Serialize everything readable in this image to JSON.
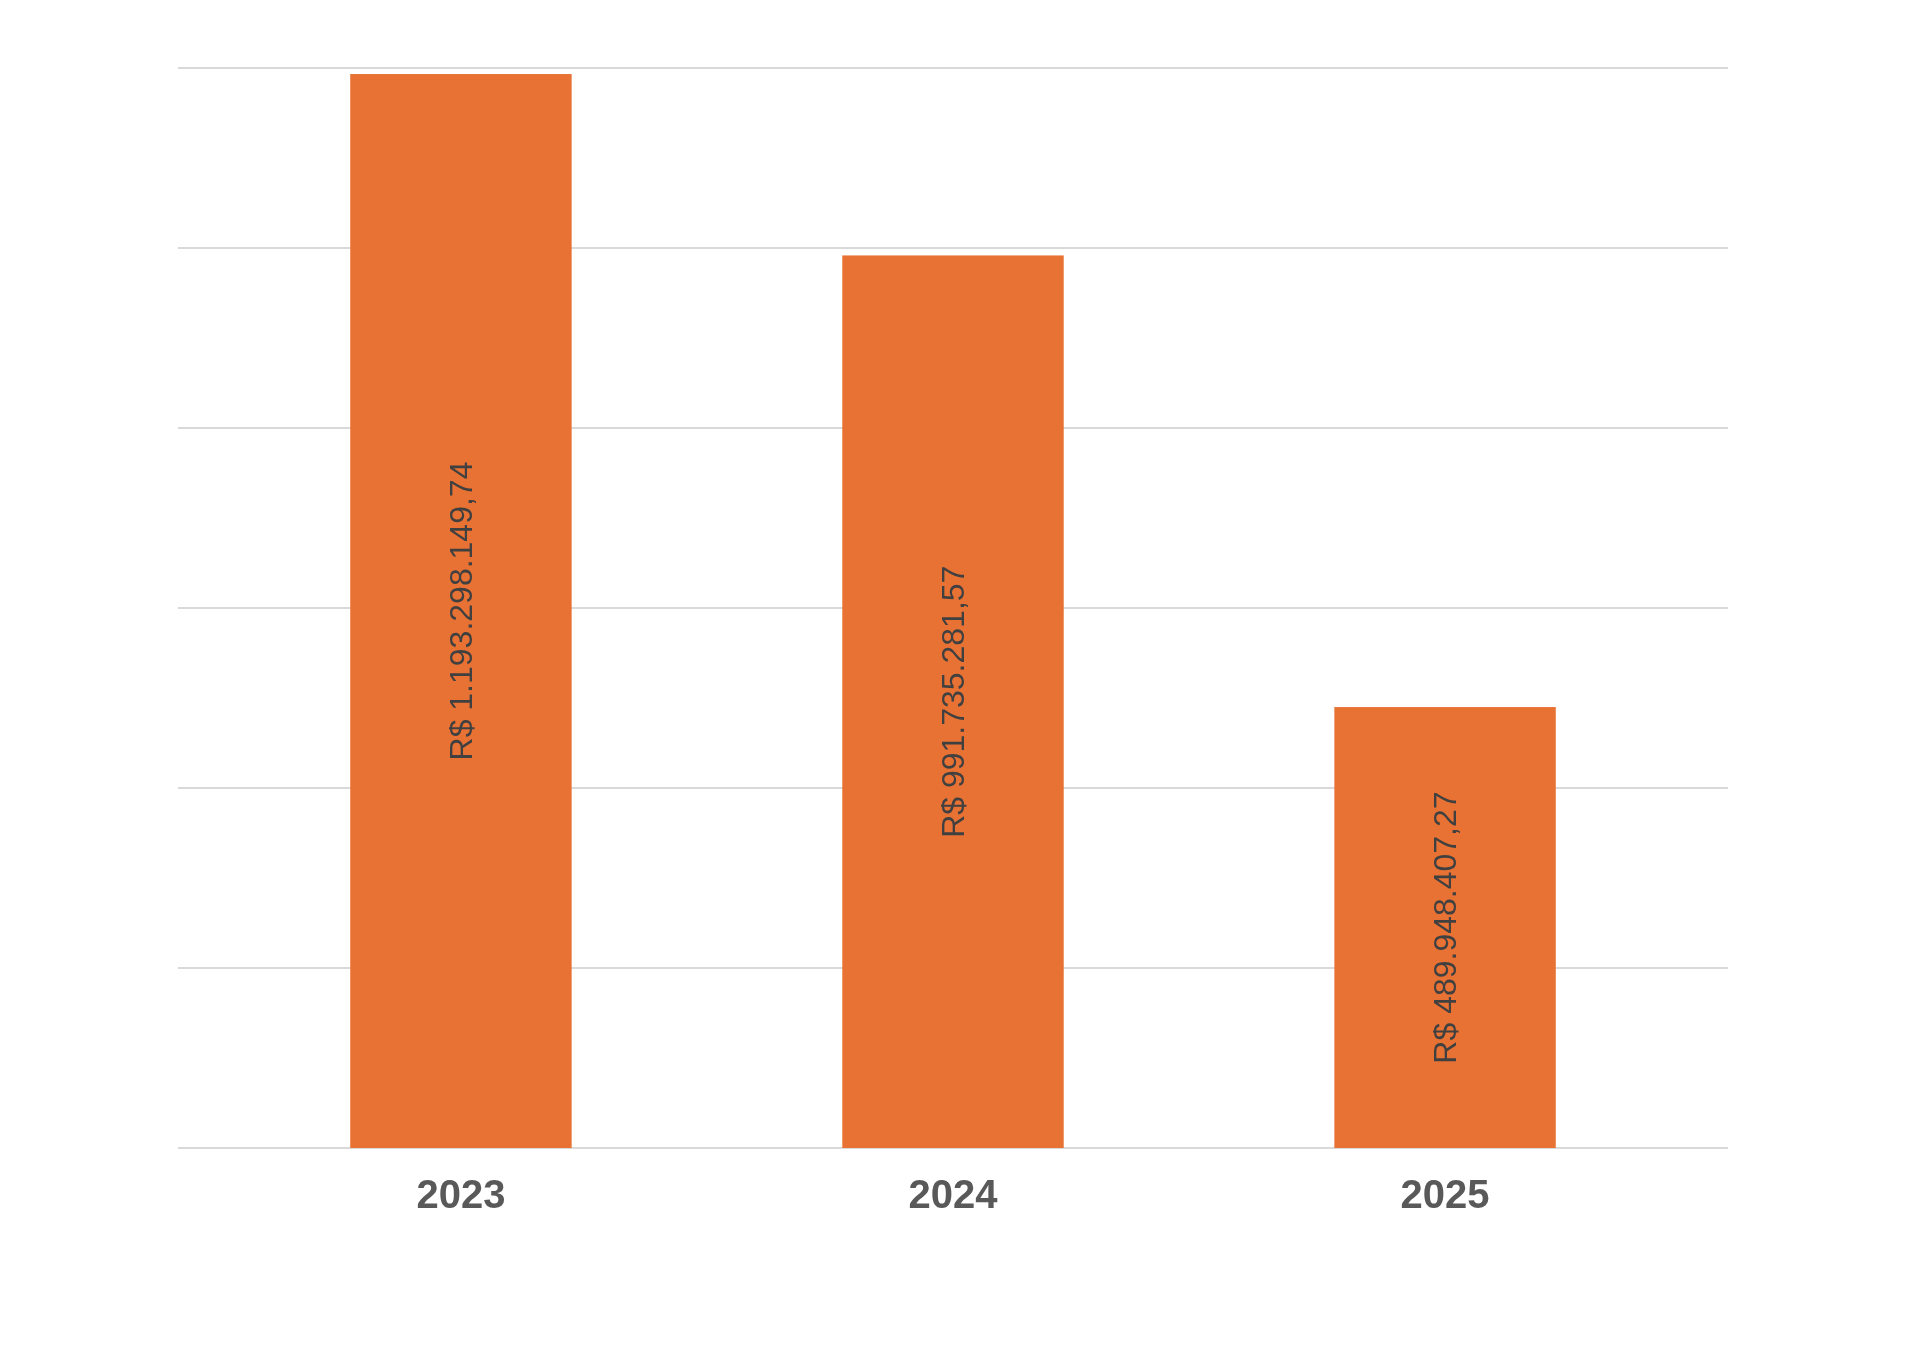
{
  "chart_data": {
    "type": "bar",
    "categories": [
      "2023",
      "2024",
      "2025"
    ],
    "values": [
      1193298149.74,
      991735281.57,
      489948407.27
    ],
    "value_labels": [
      "R$ 1.193.298.149,74",
      "R$ 991.735.281,57",
      "R$ 489.948.407,27"
    ],
    "color": "#e87234",
    "ylim": [
      0,
      1200000000
    ],
    "yticks": [
      {
        "value": 0,
        "label": null
      },
      {
        "value": 200000000,
        "label": null
      },
      {
        "value": 400000000,
        "label": null
      },
      {
        "value": 600000000,
        "label": null
      },
      {
        "value": 800000000,
        "label": null
      },
      {
        "value": 1000000000,
        "label": null
      },
      {
        "value": 1200000000,
        "label": null
      }
    ],
    "grid": "y",
    "tick_labels": "x"
  }
}
